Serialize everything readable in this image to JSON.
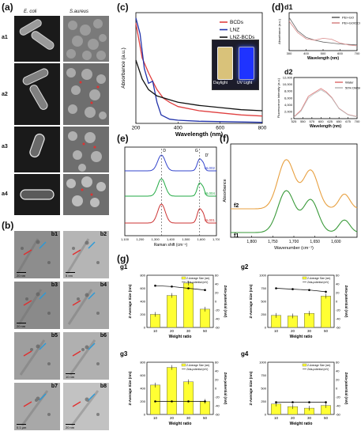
{
  "panels": {
    "a": {
      "label": "(a)",
      "col_headers": [
        "E. coli",
        "S.aureus"
      ],
      "rows": [
        "a1",
        "a2",
        "a3",
        "a4"
      ]
    },
    "b": {
      "label": "(b)",
      "tiles": [
        "b1",
        "b2",
        "b3",
        "b4",
        "b5",
        "b6",
        "b7",
        "b8"
      ],
      "scales": [
        "20 nm",
        "5 nm",
        "20 nm",
        "",
        "",
        "10 nm",
        "0.1 μm",
        "20 nm"
      ]
    },
    "c": {
      "label": "(c)",
      "inset_labels": [
        "Daylight",
        "UV Light"
      ]
    },
    "d": {
      "label": "(d)",
      "d1": "d1",
      "d2": "d2"
    },
    "e": {
      "label": "(e)"
    },
    "f": {
      "label": "(f)"
    },
    "g": {
      "label": "(g)"
    }
  },
  "chart_data": [
    {
      "id": "c",
      "type": "line",
      "xlabel": "Wavelength (nm)",
      "ylabel": "Absorbance (a.u.)",
      "xlim": [
        200,
        800
      ],
      "xticks": [
        200,
        400,
        600,
        800
      ],
      "legend": "top-right",
      "series": [
        {
          "name": "BCDs",
          "color": "#e04040",
          "x": [
            200,
            230,
            260,
            280,
            300,
            330,
            360,
            400,
            500,
            600,
            700,
            800
          ],
          "y": [
            0.95,
            0.62,
            0.48,
            0.4,
            0.32,
            0.24,
            0.2,
            0.16,
            0.12,
            0.1,
            0.08,
            0.07
          ]
        },
        {
          "name": "LNZ",
          "color": "#2233aa",
          "x": [
            200,
            220,
            240,
            260,
            280,
            300,
            320,
            360,
            400,
            500,
            800
          ],
          "y": [
            1.0,
            0.85,
            0.52,
            0.38,
            0.4,
            0.2,
            0.08,
            0.04,
            0.03,
            0.02,
            0.01
          ]
        },
        {
          "name": "LNZ-BCDs",
          "color": "#111111",
          "x": [
            200,
            230,
            260,
            300,
            400,
            500,
            600,
            700,
            800
          ],
          "y": [
            0.6,
            0.42,
            0.32,
            0.26,
            0.2,
            0.17,
            0.15,
            0.13,
            0.12
          ]
        }
      ]
    },
    {
      "id": "d1",
      "type": "line",
      "xlabel": "Wavelength (nm)",
      "ylabel": "Absorbance (a.u.)",
      "xlim": [
        300,
        700
      ],
      "xticks": [
        300,
        400,
        500,
        600,
        700
      ],
      "legend": "top-right",
      "series": [
        {
          "name": "PEI+GO",
          "color": "#666666",
          "x": [
            300,
            350,
            400,
            450,
            500,
            550,
            600,
            650,
            700
          ],
          "y": [
            0.9,
            0.62,
            0.48,
            0.42,
            0.38,
            0.36,
            0.34,
            0.33,
            0.32
          ]
        },
        {
          "name": "PEI+GO/DCG",
          "color": "#d98a8a",
          "x": [
            300,
            350,
            400,
            450,
            500,
            550,
            600,
            650,
            700
          ],
          "y": [
            0.82,
            0.58,
            0.45,
            0.42,
            0.46,
            0.44,
            0.36,
            0.32,
            0.3
          ]
        }
      ]
    },
    {
      "id": "d2",
      "type": "line",
      "xlabel": "Wavelength (nm)",
      "ylabel": "Fluorescence intensity (a.u.)",
      "xlim": [
        525,
        700
      ],
      "xticks": [
        525,
        550,
        575,
        600,
        625,
        650,
        675,
        700
      ],
      "yticks": [
        0,
        2000,
        4000,
        6000,
        8000,
        10000,
        12000
      ],
      "legend": "top-right",
      "series": [
        {
          "name": "Water",
          "color": "#e07a7a",
          "x": [
            525,
            545,
            565,
            580,
            600,
            615,
            630,
            650,
            675,
            700
          ],
          "y": [
            500,
            2500,
            6500,
            7500,
            8800,
            7800,
            6200,
            3000,
            1200,
            600
          ]
        },
        {
          "name": "50% DMSO",
          "color": "#bbbbbb",
          "x": [
            525,
            545,
            565,
            580,
            600,
            615,
            630,
            650,
            675,
            700
          ],
          "y": [
            400,
            2200,
            6000,
            7200,
            8400,
            7500,
            6000,
            2900,
            1100,
            500
          ]
        }
      ]
    },
    {
      "id": "e",
      "type": "line",
      "xlabel": "Raman shift (cm⁻¹)",
      "ylabel": "",
      "xlim": [
        1100,
        1700
      ],
      "xticks": [
        1100,
        1200,
        1300,
        1400,
        1500,
        1600,
        1700
      ],
      "peak_labels": [
        "D",
        "G",
        "D'"
      ],
      "series": [
        {
          "name": "NL002",
          "color": "#3344cc"
        },
        {
          "name": "NL004",
          "color": "#22aa44"
        },
        {
          "name": "NL001",
          "color": "#cc3333"
        }
      ]
    },
    {
      "id": "f",
      "type": "line",
      "xlabel": "Wavenumber (cm⁻¹)",
      "ylabel": "Absorbance",
      "xlim": [
        1850,
        1550
      ],
      "xticks": [
        1800,
        1750,
        1700,
        1650,
        1600
      ],
      "series": [
        {
          "name": "f2",
          "color": "#e8a040"
        },
        {
          "name": "f1",
          "color": "#3a9a3a"
        }
      ]
    },
    {
      "id": "g1",
      "type": "bar",
      "categories": [
        "10",
        "20",
        "30",
        "50"
      ],
      "xlabel": "Weight ratio",
      "ylabel": "Z-Average Size (nm)",
      "y2label": "Zeta-potential (mV)",
      "ylim": [
        0,
        800
      ],
      "y2lim": [
        -60,
        60
      ],
      "legend": [
        "Z-Average Size (nm)",
        "Zeta-potential (mV)"
      ],
      "values": [
        200,
        490,
        680,
        280
      ],
      "zeta": [
        36,
        34,
        30,
        26
      ]
    },
    {
      "id": "g2",
      "type": "bar",
      "categories": [
        "10",
        "20",
        "30",
        "50"
      ],
      "xlabel": "Weight ratio",
      "ylabel": "Z-Average Size (nm)",
      "y2label": "Zeta-potential (mV)",
      "ylim": [
        0,
        1000
      ],
      "y2lim": [
        -60,
        60
      ],
      "legend": [
        "Z-Average Size (nm)",
        "Zeta-potential (mV)"
      ],
      "values": [
        230,
        220,
        270,
        600
      ],
      "zeta": [
        30,
        28,
        26,
        22
      ]
    },
    {
      "id": "g3",
      "type": "bar",
      "categories": [
        "10",
        "20",
        "30",
        "50"
      ],
      "xlabel": "Weight ratio",
      "ylabel": "Z-Average Size (nm)",
      "y2label": "Zeta-potential (mV)",
      "ylim": [
        0,
        800
      ],
      "y2lim": [
        -60,
        60
      ],
      "legend": [
        "Z-Average Size (nm)",
        "Zeta-potential (mV)"
      ],
      "values": [
        450,
        720,
        500,
        200
      ],
      "zeta": [
        -30,
        -30,
        -30,
        -30
      ]
    },
    {
      "id": "g4",
      "type": "bar",
      "categories": [
        "10",
        "20",
        "30",
        "50"
      ],
      "xlabel": "Weight ratio",
      "ylabel": "Z-Average Size (nm)",
      "y2label": "Zeta-potential (mV)",
      "ylim": [
        0,
        1000
      ],
      "y2lim": [
        -60,
        60
      ],
      "legend": [
        "Z-Average Size (nm)",
        "Zeta-potential (mV)"
      ],
      "values": [
        200,
        150,
        120,
        170
      ],
      "zeta": [
        -32,
        -32,
        -32,
        -32
      ]
    }
  ]
}
